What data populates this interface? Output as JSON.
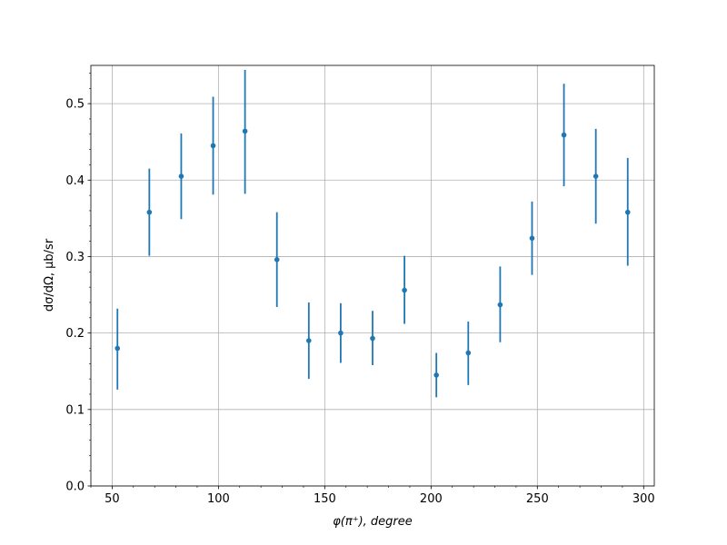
{
  "chart_data": {
    "type": "scatter",
    "xlabel": "φ(π⁺), degree",
    "ylabel": "dσ/dΩ, μb/sr",
    "xlim": [
      40,
      305
    ],
    "ylim": [
      0,
      0.55
    ],
    "grid": true,
    "x_ticks": [
      50,
      100,
      150,
      200,
      250,
      300
    ],
    "y_ticks": [
      0.0,
      0.1,
      0.2,
      0.3,
      0.4,
      0.5
    ],
    "x_tick_labels": [
      "50",
      "100",
      "150",
      "200",
      "250",
      "300"
    ],
    "y_tick_labels": [
      "0.0",
      "0.1",
      "0.2",
      "0.3",
      "0.4",
      "0.5"
    ],
    "series": [
      {
        "color": "#1f77b4",
        "x": [
          52.5,
          67.5,
          82.5,
          97.5,
          112.5,
          127.5,
          142.5,
          157.5,
          172.5,
          187.5,
          202.5,
          217.5,
          232.5,
          247.5,
          262.5,
          277.5,
          292.5
        ],
        "y": [
          0.18,
          0.358,
          0.405,
          0.445,
          0.464,
          0.296,
          0.19,
          0.2,
          0.193,
          0.256,
          0.145,
          0.174,
          0.237,
          0.324,
          0.459,
          0.405,
          0.358
        ],
        "y_low": [
          0.126,
          0.301,
          0.349,
          0.381,
          0.382,
          0.234,
          0.14,
          0.161,
          0.158,
          0.212,
          0.116,
          0.132,
          0.188,
          0.276,
          0.392,
          0.343,
          0.288
        ],
        "y_high": [
          0.232,
          0.415,
          0.461,
          0.509,
          0.544,
          0.358,
          0.24,
          0.239,
          0.229,
          0.301,
          0.174,
          0.215,
          0.287,
          0.372,
          0.526,
          0.467,
          0.429
        ]
      }
    ]
  }
}
